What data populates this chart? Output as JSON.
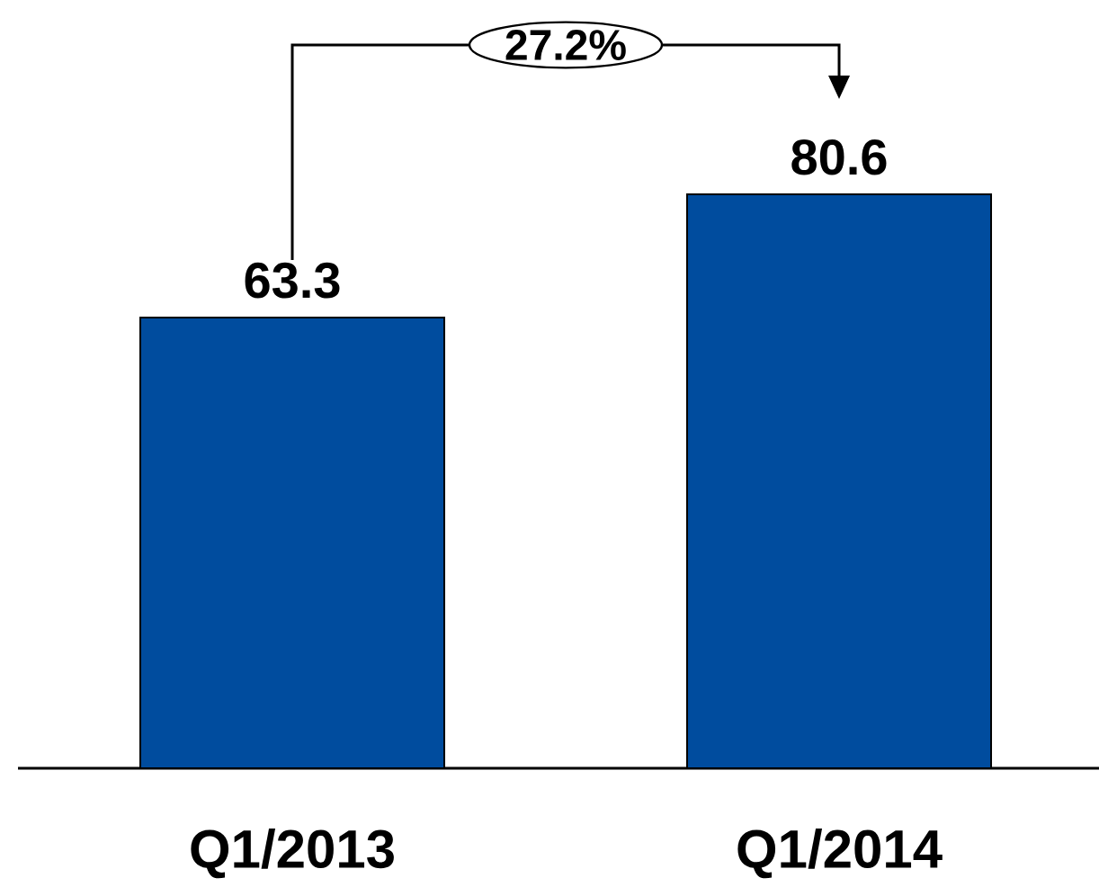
{
  "chart_data": {
    "type": "bar",
    "categories": [
      "Q1/2013",
      "Q1/2014"
    ],
    "values": [
      63.3,
      80.6
    ],
    "color": "#004c9e",
    "data_labels": true,
    "annotations": [
      "27.2%"
    ]
  }
}
